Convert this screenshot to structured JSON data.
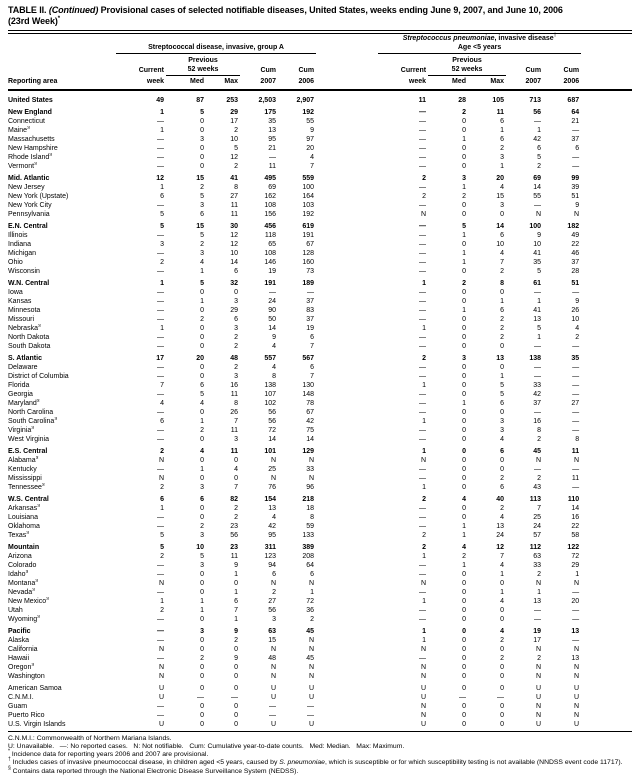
{
  "title": {
    "prefix": "TABLE II. ",
    "continued": "(Continued)",
    "rest": " Provisional cases of selected notifiable diseases, United States, weeks ending June 9, 2007, and June 10, 2006",
    "line2": "(23rd Week)",
    "sup": "*"
  },
  "header": {
    "group_a": {
      "name": "Streptococcal disease, invasive, group A"
    },
    "group_b": {
      "name_italic": "Streptococcus pneumoniae",
      "name_rest": ", invasive disease",
      "name_sup": "†",
      "subtitle": "Age <5 years"
    },
    "labels": {
      "reporting_area": "Reporting area",
      "current": "Current",
      "week": "week",
      "prev1": "Previous",
      "prev2": "52 weeks",
      "med": "Med",
      "max": "Max",
      "cum": "Cum",
      "y2007": "2007",
      "y2006": "2006"
    }
  },
  "table": {
    "rows": [
      {
        "name": "United States",
        "bold": true,
        "values": [
          "49",
          "87",
          "253",
          "2,503",
          "2,907",
          "11",
          "28",
          "105",
          "713",
          "687"
        ]
      },
      {
        "name": "New England",
        "bold": true,
        "gap": true,
        "values": [
          "1",
          "5",
          "29",
          "175",
          "192",
          "—",
          "2",
          "11",
          "56",
          "64"
        ]
      },
      {
        "name": "Connecticut",
        "values": [
          "—",
          "0",
          "17",
          "35",
          "55",
          "—",
          "0",
          "6",
          "—",
          "21"
        ]
      },
      {
        "name": "Maine",
        "sup": "§",
        "values": [
          "1",
          "0",
          "2",
          "13",
          "9",
          "—",
          "0",
          "1",
          "1",
          "—"
        ]
      },
      {
        "name": "Massachusetts",
        "values": [
          "—",
          "3",
          "10",
          "95",
          "97",
          "—",
          "1",
          "6",
          "42",
          "37"
        ]
      },
      {
        "name": "New Hampshire",
        "values": [
          "—",
          "0",
          "5",
          "21",
          "20",
          "—",
          "0",
          "2",
          "6",
          "6"
        ]
      },
      {
        "name": "Rhode Island",
        "sup": "§",
        "values": [
          "—",
          "0",
          "12",
          "—",
          "4",
          "—",
          "0",
          "3",
          "5",
          "—"
        ]
      },
      {
        "name": "Vermont",
        "sup": "§",
        "values": [
          "—",
          "0",
          "2",
          "11",
          "7",
          "—",
          "0",
          "1",
          "2",
          "—"
        ]
      },
      {
        "name": "Mid. Atlantic",
        "bold": true,
        "gap": true,
        "values": [
          "12",
          "15",
          "41",
          "495",
          "559",
          "2",
          "3",
          "20",
          "69",
          "99"
        ]
      },
      {
        "name": "New Jersey",
        "values": [
          "1",
          "2",
          "8",
          "69",
          "100",
          "—",
          "1",
          "4",
          "14",
          "39"
        ]
      },
      {
        "name": "New York (Upstate)",
        "values": [
          "6",
          "5",
          "27",
          "162",
          "164",
          "2",
          "2",
          "15",
          "55",
          "51"
        ]
      },
      {
        "name": "New York City",
        "values": [
          "—",
          "3",
          "11",
          "108",
          "103",
          "—",
          "0",
          "3",
          "—",
          "9"
        ]
      },
      {
        "name": "Pennsylvania",
        "values": [
          "5",
          "6",
          "11",
          "156",
          "192",
          "N",
          "0",
          "0",
          "N",
          "N"
        ]
      },
      {
        "name": "E.N. Central",
        "bold": true,
        "gap": true,
        "values": [
          "5",
          "15",
          "30",
          "456",
          "619",
          "—",
          "5",
          "14",
          "100",
          "182"
        ]
      },
      {
        "name": "Illinois",
        "values": [
          "—",
          "5",
          "12",
          "118",
          "191",
          "—",
          "1",
          "6",
          "9",
          "49"
        ]
      },
      {
        "name": "Indiana",
        "values": [
          "3",
          "2",
          "12",
          "65",
          "67",
          "—",
          "0",
          "10",
          "10",
          "22"
        ]
      },
      {
        "name": "Michigan",
        "values": [
          "—",
          "3",
          "10",
          "108",
          "128",
          "—",
          "1",
          "4",
          "41",
          "46"
        ]
      },
      {
        "name": "Ohio",
        "values": [
          "2",
          "4",
          "14",
          "146",
          "160",
          "—",
          "1",
          "7",
          "35",
          "37"
        ]
      },
      {
        "name": "Wisconsin",
        "values": [
          "—",
          "1",
          "6",
          "19",
          "73",
          "—",
          "0",
          "2",
          "5",
          "28"
        ]
      },
      {
        "name": "W.N. Central",
        "bold": true,
        "gap": true,
        "values": [
          "1",
          "5",
          "32",
          "191",
          "189",
          "1",
          "2",
          "8",
          "61",
          "51"
        ]
      },
      {
        "name": "Iowa",
        "values": [
          "—",
          "0",
          "0",
          "—",
          "—",
          "—",
          "0",
          "0",
          "—",
          "—"
        ]
      },
      {
        "name": "Kansas",
        "values": [
          "—",
          "1",
          "3",
          "24",
          "37",
          "—",
          "0",
          "1",
          "1",
          "9"
        ]
      },
      {
        "name": "Minnesota",
        "values": [
          "—",
          "0",
          "29",
          "90",
          "83",
          "—",
          "1",
          "6",
          "41",
          "26"
        ]
      },
      {
        "name": "Missouri",
        "values": [
          "—",
          "2",
          "6",
          "50",
          "37",
          "—",
          "0",
          "2",
          "13",
          "10"
        ]
      },
      {
        "name": "Nebraska",
        "sup": "§",
        "values": [
          "1",
          "0",
          "3",
          "14",
          "19",
          "1",
          "0",
          "2",
          "5",
          "4"
        ]
      },
      {
        "name": "North Dakota",
        "values": [
          "—",
          "0",
          "2",
          "9",
          "6",
          "—",
          "0",
          "2",
          "1",
          "2"
        ]
      },
      {
        "name": "South Dakota",
        "values": [
          "—",
          "0",
          "2",
          "4",
          "7",
          "—",
          "0",
          "0",
          "—",
          "—"
        ]
      },
      {
        "name": "S. Atlantic",
        "bold": true,
        "gap": true,
        "values": [
          "17",
          "20",
          "48",
          "557",
          "567",
          "2",
          "3",
          "13",
          "138",
          "35"
        ]
      },
      {
        "name": "Delaware",
        "values": [
          "—",
          "0",
          "2",
          "4",
          "6",
          "—",
          "0",
          "0",
          "—",
          "—"
        ]
      },
      {
        "name": "District of Columbia",
        "values": [
          "—",
          "0",
          "3",
          "8",
          "7",
          "—",
          "0",
          "1",
          "—",
          "—"
        ]
      },
      {
        "name": "Florida",
        "values": [
          "7",
          "6",
          "16",
          "138",
          "130",
          "1",
          "0",
          "5",
          "33",
          "—"
        ]
      },
      {
        "name": "Georgia",
        "values": [
          "—",
          "5",
          "11",
          "107",
          "148",
          "—",
          "0",
          "5",
          "42",
          "—"
        ]
      },
      {
        "name": "Maryland",
        "sup": "§",
        "values": [
          "4",
          "4",
          "8",
          "102",
          "78",
          "—",
          "1",
          "6",
          "37",
          "27"
        ]
      },
      {
        "name": "North Carolina",
        "values": [
          "—",
          "0",
          "26",
          "56",
          "67",
          "—",
          "0",
          "0",
          "—",
          "—"
        ]
      },
      {
        "name": "South Carolina",
        "sup": "§",
        "values": [
          "6",
          "1",
          "7",
          "56",
          "42",
          "1",
          "0",
          "3",
          "16",
          "—"
        ]
      },
      {
        "name": "Virginia",
        "sup": "§",
        "values": [
          "—",
          "2",
          "11",
          "72",
          "75",
          "—",
          "0",
          "3",
          "8",
          "—"
        ]
      },
      {
        "name": "West Virginia",
        "values": [
          "—",
          "0",
          "3",
          "14",
          "14",
          "—",
          "0",
          "4",
          "2",
          "8"
        ]
      },
      {
        "name": "E.S. Central",
        "bold": true,
        "gap": true,
        "values": [
          "2",
          "4",
          "11",
          "101",
          "129",
          "1",
          "0",
          "6",
          "45",
          "11"
        ]
      },
      {
        "name": "Alabama",
        "sup": "§",
        "values": [
          "N",
          "0",
          "0",
          "N",
          "N",
          "N",
          "0",
          "0",
          "N",
          "N"
        ]
      },
      {
        "name": "Kentucky",
        "values": [
          "—",
          "1",
          "4",
          "25",
          "33",
          "—",
          "0",
          "0",
          "—",
          "—"
        ]
      },
      {
        "name": "Mississippi",
        "values": [
          "N",
          "0",
          "0",
          "N",
          "N",
          "—",
          "0",
          "2",
          "2",
          "11"
        ]
      },
      {
        "name": "Tennessee",
        "sup": "§",
        "values": [
          "2",
          "3",
          "7",
          "76",
          "96",
          "1",
          "0",
          "6",
          "43",
          "—"
        ]
      },
      {
        "name": "W.S. Central",
        "bold": true,
        "gap": true,
        "values": [
          "6",
          "6",
          "82",
          "154",
          "218",
          "2",
          "4",
          "40",
          "113",
          "110"
        ]
      },
      {
        "name": "Arkansas",
        "sup": "§",
        "values": [
          "1",
          "0",
          "2",
          "13",
          "18",
          "—",
          "0",
          "2",
          "7",
          "14"
        ]
      },
      {
        "name": "Louisiana",
        "values": [
          "—",
          "0",
          "2",
          "4",
          "8",
          "—",
          "0",
          "4",
          "25",
          "16"
        ]
      },
      {
        "name": "Oklahoma",
        "values": [
          "—",
          "2",
          "23",
          "42",
          "59",
          "—",
          "1",
          "13",
          "24",
          "22"
        ]
      },
      {
        "name": "Texas",
        "sup": "§",
        "values": [
          "5",
          "3",
          "56",
          "95",
          "133",
          "2",
          "1",
          "24",
          "57",
          "58"
        ]
      },
      {
        "name": "Mountain",
        "bold": true,
        "gap": true,
        "values": [
          "5",
          "10",
          "23",
          "311",
          "389",
          "2",
          "4",
          "12",
          "112",
          "122"
        ]
      },
      {
        "name": "Arizona",
        "values": [
          "2",
          "5",
          "11",
          "123",
          "208",
          "1",
          "2",
          "7",
          "63",
          "72"
        ]
      },
      {
        "name": "Colorado",
        "values": [
          "—",
          "3",
          "9",
          "94",
          "64",
          "—",
          "1",
          "4",
          "33",
          "29"
        ]
      },
      {
        "name": "Idaho",
        "sup": "§",
        "values": [
          "—",
          "0",
          "1",
          "6",
          "6",
          "—",
          "0",
          "1",
          "2",
          "1"
        ]
      },
      {
        "name": "Montana",
        "sup": "§",
        "values": [
          "N",
          "0",
          "0",
          "N",
          "N",
          "N",
          "0",
          "0",
          "N",
          "N"
        ]
      },
      {
        "name": "Nevada",
        "sup": "§",
        "values": [
          "—",
          "0",
          "1",
          "2",
          "1",
          "—",
          "0",
          "1",
          "1",
          "—"
        ]
      },
      {
        "name": "New Mexico",
        "sup": "§",
        "values": [
          "1",
          "1",
          "6",
          "27",
          "72",
          "1",
          "0",
          "4",
          "13",
          "20"
        ]
      },
      {
        "name": "Utah",
        "values": [
          "2",
          "1",
          "7",
          "56",
          "36",
          "—",
          "0",
          "0",
          "—",
          "—"
        ]
      },
      {
        "name": "Wyoming",
        "sup": "§",
        "values": [
          "—",
          "0",
          "1",
          "3",
          "2",
          "—",
          "0",
          "0",
          "—",
          "—"
        ]
      },
      {
        "name": "Pacific",
        "bold": true,
        "gap": true,
        "values": [
          "—",
          "3",
          "9",
          "63",
          "45",
          "1",
          "0",
          "4",
          "19",
          "13"
        ]
      },
      {
        "name": "Alaska",
        "values": [
          "—",
          "0",
          "2",
          "15",
          "N",
          "1",
          "0",
          "2",
          "17",
          "—"
        ]
      },
      {
        "name": "California",
        "values": [
          "N",
          "0",
          "0",
          "N",
          "N",
          "N",
          "0",
          "0",
          "N",
          "N"
        ]
      },
      {
        "name": "Hawaii",
        "values": [
          "—",
          "2",
          "9",
          "48",
          "45",
          "—",
          "0",
          "2",
          "2",
          "13"
        ]
      },
      {
        "name": "Oregon",
        "sup": "§",
        "values": [
          "N",
          "0",
          "0",
          "N",
          "N",
          "N",
          "0",
          "0",
          "N",
          "N"
        ]
      },
      {
        "name": "Washington",
        "values": [
          "N",
          "0",
          "0",
          "N",
          "N",
          "N",
          "0",
          "0",
          "N",
          "N"
        ]
      },
      {
        "name": "American Samoa",
        "gap": true,
        "values": [
          "U",
          "0",
          "0",
          "U",
          "U",
          "U",
          "0",
          "0",
          "U",
          "U"
        ]
      },
      {
        "name": "C.N.M.I.",
        "values": [
          "U",
          "—",
          "—",
          "U",
          "U",
          "U",
          "—",
          "—",
          "U",
          "U"
        ]
      },
      {
        "name": "Guam",
        "values": [
          "—",
          "0",
          "0",
          "—",
          "—",
          "N",
          "0",
          "0",
          "N",
          "N"
        ]
      },
      {
        "name": "Puerto Rico",
        "values": [
          "—",
          "0",
          "0",
          "—",
          "—",
          "N",
          "0",
          "0",
          "N",
          "N"
        ]
      },
      {
        "name": "U.S. Virgin Islands",
        "values": [
          "U",
          "0",
          "0",
          "U",
          "U",
          "U",
          "0",
          "0",
          "U",
          "U"
        ]
      }
    ]
  },
  "footnotes": [
    {
      "text": "C.N.M.I.: Commonwealth of Northern Mariana Islands."
    },
    {
      "text": "U: Unavailable.   —: No reported cases.   N: Not notifiable.   Cum: Cumulative year-to-date counts.   Med: Median.   Max: Maximum."
    },
    {
      "marker": "*",
      "text": "Incidence data for reporting years 2006 and 2007 are provisional."
    },
    {
      "marker": "†",
      "parts": [
        {
          "text": "Includes cases of invasive pneumococcal disease, in children aged <5 years, caused by "
        },
        {
          "text": "S. pneumoniae",
          "italic": true
        },
        {
          "text": ", which is susceptible or for which susceptibility testing is not available (NNDSS event code 11717)."
        }
      ]
    },
    {
      "marker": "§",
      "text": "Contains data reported through the National Electronic Disease Surveillance System (NEDSS)."
    }
  ]
}
